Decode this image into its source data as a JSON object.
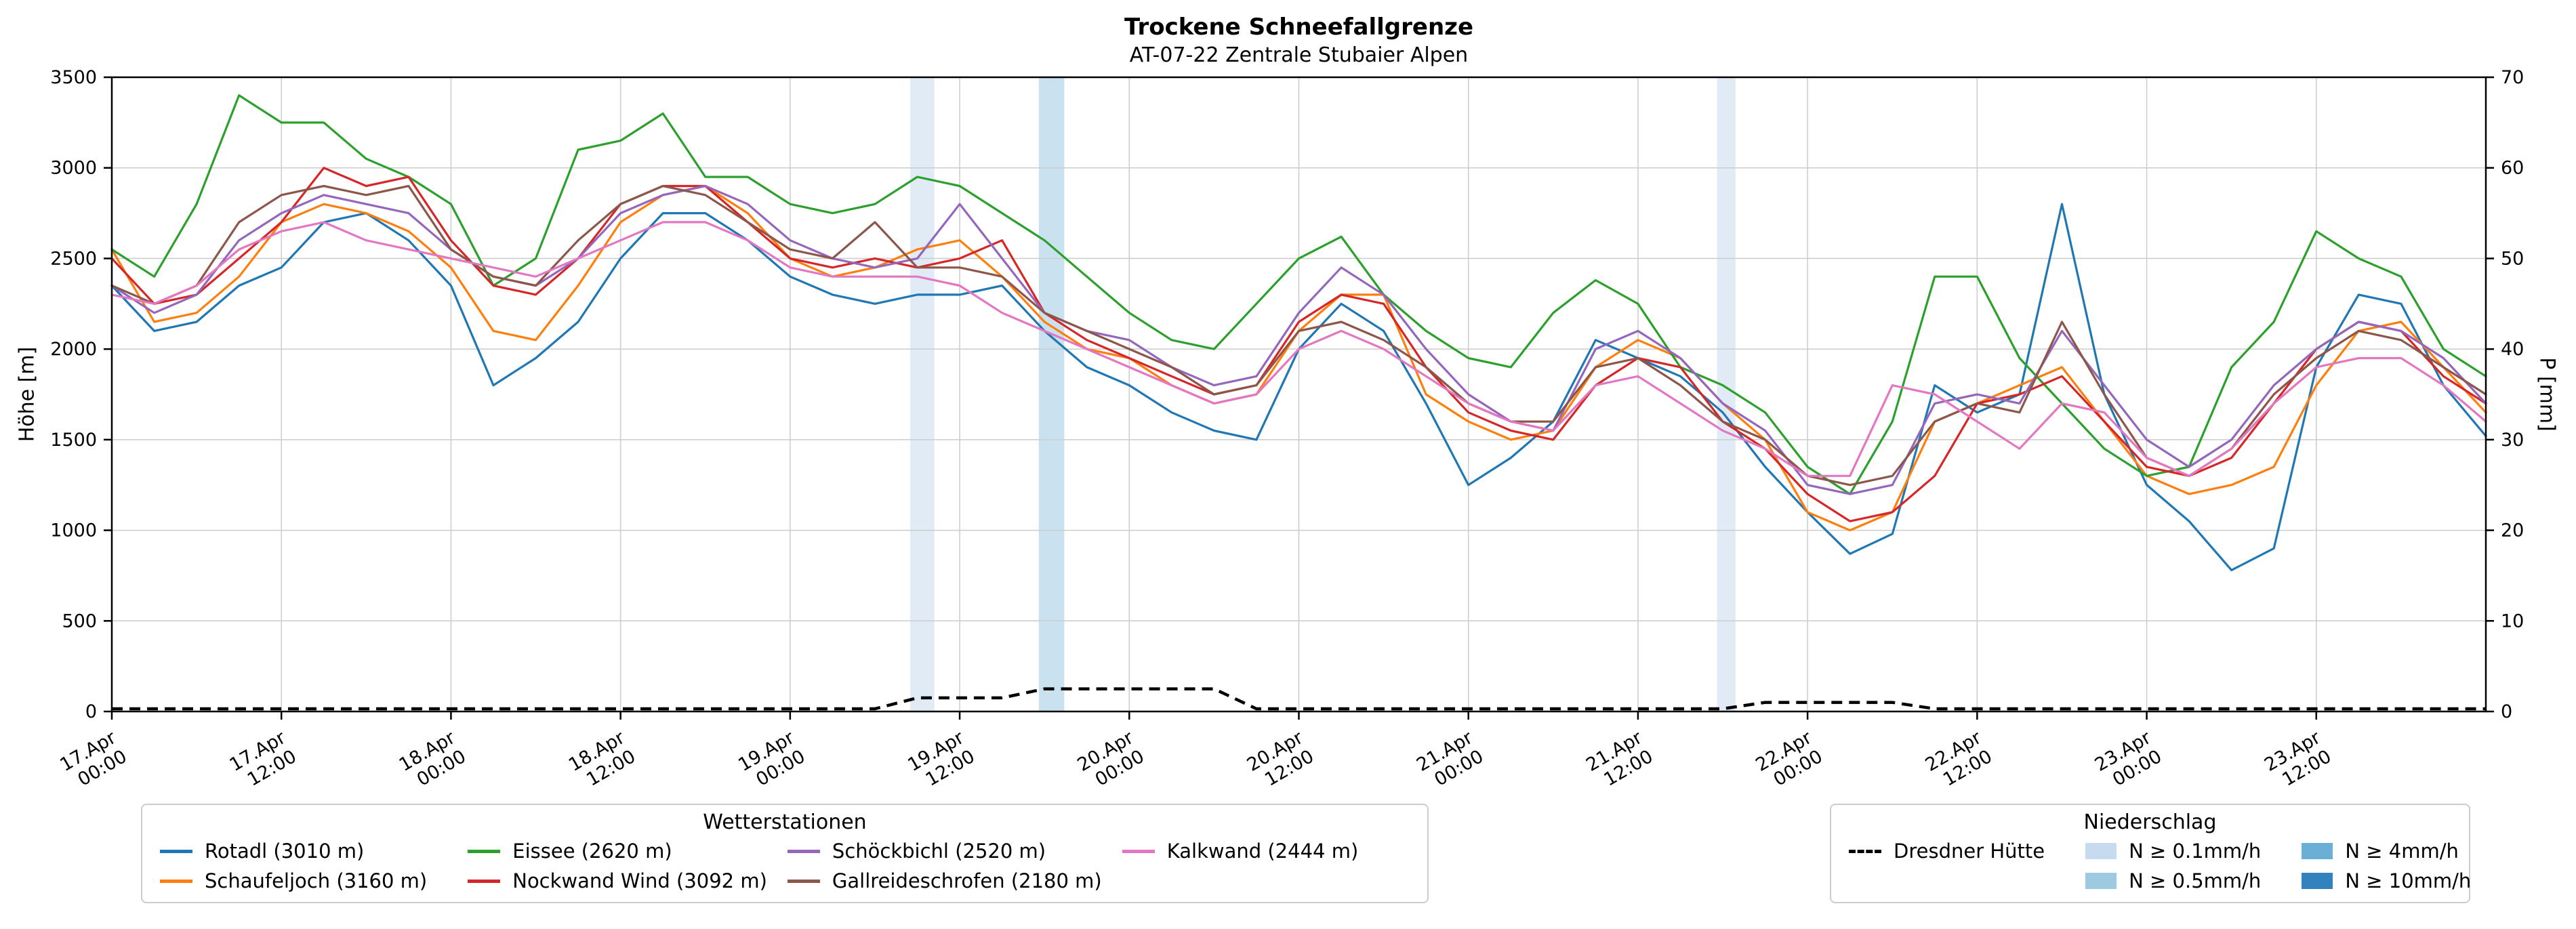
{
  "chart_data": {
    "type": "line",
    "title": "Trockene Schneefallgrenze",
    "subtitle": "AT-07-22 Zentrale Stubaier Alpen",
    "ylabel_left": "Höhe [m]",
    "ylabel_right": "P [mm]",
    "ylim_left": [
      0,
      3500
    ],
    "ylim_right": [
      0,
      70
    ],
    "yticks_left": [
      0,
      500,
      1000,
      1500,
      2000,
      2500,
      3000,
      3500
    ],
    "yticks_right": [
      0,
      10,
      20,
      30,
      40,
      50,
      60,
      70
    ],
    "x_range_hours": [
      0,
      168
    ],
    "x_ticks": [
      {
        "hour": 0,
        "date": "17.Apr",
        "time": "00:00"
      },
      {
        "hour": 12,
        "date": "17.Apr",
        "time": "12:00"
      },
      {
        "hour": 24,
        "date": "18.Apr",
        "time": "00:00"
      },
      {
        "hour": 36,
        "date": "18.Apr",
        "time": "12:00"
      },
      {
        "hour": 48,
        "date": "19.Apr",
        "time": "00:00"
      },
      {
        "hour": 60,
        "date": "19.Apr",
        "time": "12:00"
      },
      {
        "hour": 72,
        "date": "20.Apr",
        "time": "00:00"
      },
      {
        "hour": 84,
        "date": "20.Apr",
        "time": "12:00"
      },
      {
        "hour": 96,
        "date": "21.Apr",
        "time": "00:00"
      },
      {
        "hour": 108,
        "date": "21.Apr",
        "time": "12:00"
      },
      {
        "hour": 120,
        "date": "22.Apr",
        "time": "00:00"
      },
      {
        "hour": 132,
        "date": "22.Apr",
        "time": "12:00"
      },
      {
        "hour": 144,
        "date": "23.Apr",
        "time": "00:00"
      },
      {
        "hour": 156,
        "date": "23.Apr",
        "time": "12:00"
      }
    ],
    "time_hours_step": 3,
    "time_hours": [
      0,
      3,
      6,
      9,
      12,
      15,
      18,
      21,
      24,
      27,
      30,
      33,
      36,
      39,
      42,
      45,
      48,
      51,
      54,
      57,
      60,
      63,
      66,
      69,
      72,
      75,
      78,
      81,
      84,
      87,
      90,
      93,
      96,
      99,
      102,
      105,
      108,
      111,
      114,
      117,
      120,
      123,
      126,
      129,
      132,
      135,
      138,
      141,
      144,
      147,
      150,
      153,
      156,
      159,
      162,
      165,
      168
    ],
    "series": [
      {
        "name": "Rotadl (3010 m)",
        "color": "#1f77b4",
        "values": [
          2350,
          2100,
          2150,
          2350,
          2450,
          2700,
          2750,
          2600,
          2350,
          1800,
          1950,
          2150,
          2500,
          2750,
          2750,
          2600,
          2400,
          2300,
          2250,
          2300,
          2300,
          2350,
          2100,
          1900,
          1800,
          1650,
          1550,
          1500,
          2000,
          2250,
          2100,
          1700,
          1250,
          1400,
          1600,
          2050,
          1950,
          1850,
          1650,
          1350,
          1100,
          870,
          980,
          1800,
          1650,
          1750,
          2800,
          1750,
          1250,
          1050,
          780,
          900,
          1900,
          2300,
          2250,
          1800,
          1520
        ]
      },
      {
        "name": "Schaufeljoch (3160 m)",
        "color": "#ff7f0e",
        "values": [
          2550,
          2150,
          2200,
          2400,
          2700,
          2800,
          2750,
          2650,
          2450,
          2100,
          2050,
          2350,
          2700,
          2850,
          2900,
          2750,
          2500,
          2400,
          2450,
          2550,
          2600,
          2400,
          2150,
          2000,
          1950,
          1800,
          1700,
          1750,
          2100,
          2300,
          2300,
          1750,
          1600,
          1500,
          1550,
          1900,
          2050,
          1950,
          1700,
          1500,
          1100,
          1000,
          1100,
          1600,
          1700,
          1800,
          1900,
          1600,
          1300,
          1200,
          1250,
          1350,
          1800,
          2100,
          2150,
          1900,
          1650
        ]
      },
      {
        "name": "Eissee (2620 m)",
        "color": "#2ca02c",
        "values": [
          2550,
          2400,
          2800,
          3400,
          3250,
          3250,
          3050,
          2950,
          2800,
          2350,
          2500,
          3100,
          3150,
          3300,
          2950,
          2950,
          2800,
          2750,
          2800,
          2950,
          2900,
          2750,
          2600,
          2400,
          2200,
          2050,
          2000,
          2250,
          2500,
          2620,
          2300,
          2100,
          1950,
          1900,
          2200,
          2380,
          2250,
          1900,
          1800,
          1650,
          1350,
          1200,
          1600,
          2400,
          2400,
          1950,
          1700,
          1450,
          1300,
          1350,
          1900,
          2150,
          2650,
          2500,
          2400,
          2000,
          1850
        ]
      },
      {
        "name": "Nockwand Wind (3092 m)",
        "color": "#d62728",
        "values": [
          2500,
          2250,
          2300,
          2500,
          2700,
          3000,
          2900,
          2950,
          2600,
          2350,
          2300,
          2500,
          2800,
          2900,
          2900,
          2700,
          2500,
          2450,
          2500,
          2450,
          2500,
          2600,
          2200,
          2050,
          1950,
          1850,
          1750,
          1800,
          2150,
          2300,
          2250,
          1900,
          1650,
          1550,
          1500,
          1800,
          1950,
          1900,
          1600,
          1450,
          1200,
          1050,
          1100,
          1300,
          1700,
          1750,
          1850,
          1600,
          1350,
          1300,
          1400,
          1700,
          2000,
          2150,
          2100,
          1850,
          1700
        ]
      },
      {
        "name": "Schöckbichl (2520 m)",
        "color": "#9467bd",
        "values": [
          2350,
          2200,
          2300,
          2600,
          2750,
          2850,
          2800,
          2750,
          2550,
          2400,
          2350,
          2500,
          2750,
          2850,
          2900,
          2800,
          2600,
          2500,
          2450,
          2500,
          2800,
          2500,
          2200,
          2100,
          2050,
          1900,
          1800,
          1850,
          2200,
          2450,
          2300,
          2000,
          1750,
          1600,
          1550,
          2000,
          2100,
          1950,
          1700,
          1550,
          1250,
          1200,
          1250,
          1700,
          1750,
          1700,
          2100,
          1800,
          1500,
          1350,
          1500,
          1800,
          2000,
          2150,
          2100,
          1950,
          1700
        ]
      },
      {
        "name": "Gallreideschrofen (2180 m)",
        "color": "#8c564b",
        "values": [
          2350,
          2250,
          2350,
          2700,
          2850,
          2900,
          2850,
          2900,
          2550,
          2400,
          2350,
          2600,
          2800,
          2900,
          2850,
          2700,
          2550,
          2500,
          2700,
          2450,
          2450,
          2400,
          2200,
          2100,
          2000,
          1900,
          1750,
          1800,
          2100,
          2150,
          2050,
          1900,
          1700,
          1600,
          1600,
          1900,
          1950,
          1800,
          1600,
          1500,
          1300,
          1250,
          1300,
          1600,
          1700,
          1650,
          2150,
          1750,
          1400,
          1300,
          1450,
          1750,
          1950,
          2100,
          2050,
          1900,
          1750
        ]
      },
      {
        "name": "Kalkwand (2444 m)",
        "color": "#e377c2",
        "values": [
          2300,
          2250,
          2350,
          2550,
          2650,
          2700,
          2600,
          2550,
          2500,
          2450,
          2400,
          2500,
          2600,
          2700,
          2700,
          2600,
          2450,
          2400,
          2400,
          2400,
          2350,
          2200,
          2100,
          2000,
          1900,
          1800,
          1700,
          1750,
          2000,
          2100,
          2000,
          1850,
          1700,
          1600,
          1550,
          1800,
          1850,
          1700,
          1550,
          1450,
          1300,
          1300,
          1800,
          1750,
          1600,
          1450,
          1700,
          1650,
          1400,
          1300,
          1450,
          1700,
          1900,
          1950,
          1950,
          1800,
          1600
        ]
      }
    ],
    "precip_line": {
      "name": "Dresdner Hütte",
      "color": "#000000",
      "dashed": true,
      "axis": "right",
      "values": [
        0.3,
        0.3,
        0.3,
        0.3,
        0.3,
        0.3,
        0.3,
        0.3,
        0.3,
        0.3,
        0.3,
        0.3,
        0.3,
        0.3,
        0.3,
        0.3,
        0.3,
        0.3,
        0.3,
        1.5,
        1.5,
        1.5,
        2.5,
        2.5,
        2.5,
        2.5,
        2.5,
        0.3,
        0.3,
        0.3,
        0.3,
        0.3,
        0.3,
        0.3,
        0.3,
        0.3,
        0.3,
        0.3,
        0.3,
        1.0,
        1.0,
        1.0,
        1.0,
        0.3,
        0.3,
        0.3,
        0.3,
        0.3,
        0.3,
        0.3,
        0.3,
        0.3,
        0.3,
        0.3,
        0.3,
        0.3,
        0.3
      ]
    },
    "band_levels": [
      {
        "label": "N ≥ 0.1mm/h",
        "color": "#c6dbef"
      },
      {
        "label": "N ≥ 0.5mm/h",
        "color": "#9ecae1"
      },
      {
        "label": "N ≥ 4mm/h",
        "color": "#6baed6"
      },
      {
        "label": "N ≥ 10mm/h",
        "color": "#3182bd"
      }
    ],
    "precip_bands": [
      {
        "start_hour": 56.5,
        "end_hour": 58.2,
        "level_index": 0
      },
      {
        "start_hour": 65.6,
        "end_hour": 67.4,
        "level_index": 1
      },
      {
        "start_hour": 113.6,
        "end_hour": 114.9,
        "level_index": 0
      }
    ],
    "grid": true,
    "legend_left_title": "Wetterstationen",
    "legend_right_title": "Niederschlag"
  },
  "style_colors": {
    "grid": "#cccccc",
    "spine": "#000000",
    "band_opacity": 0.55
  }
}
